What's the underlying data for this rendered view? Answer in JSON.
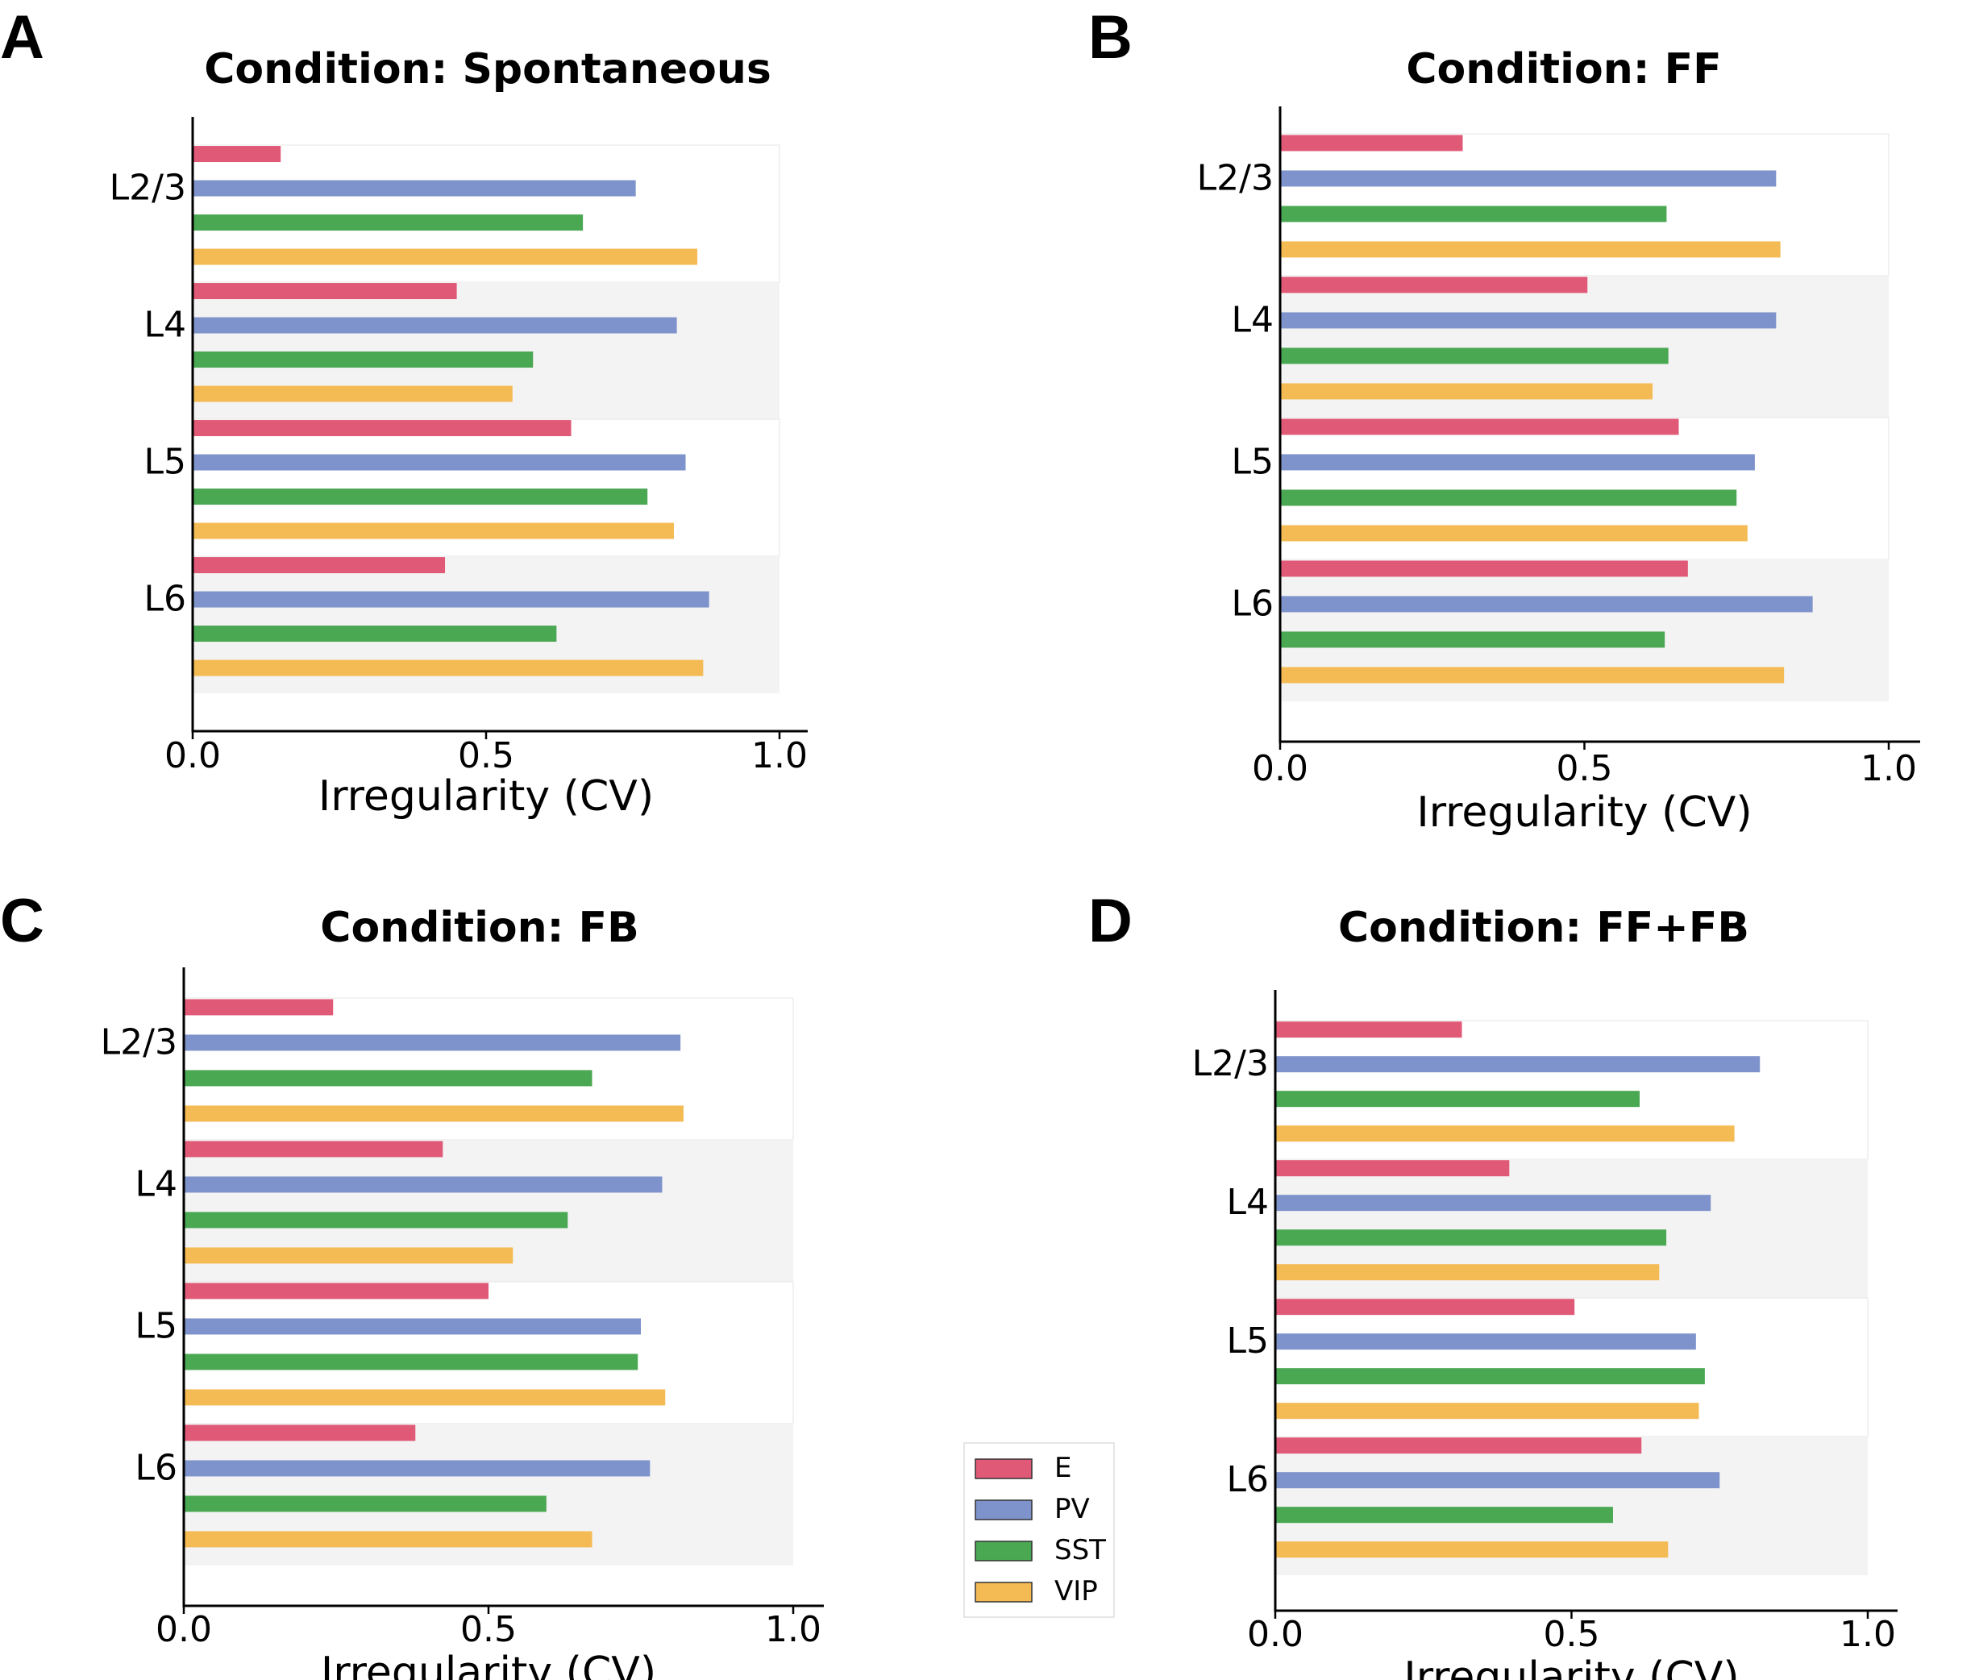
{
  "colors": {
    "E": "#e05a78",
    "PV": "#7e93cb",
    "SST": "#4aa752",
    "VIP": "#f4bb54",
    "band_shade": "#f3f3f3"
  },
  "legend": {
    "items": [
      {
        "label": "E",
        "color": "#e05a78"
      },
      {
        "label": "PV",
        "color": "#7e93cb"
      },
      {
        "label": "SST",
        "color": "#4aa752"
      },
      {
        "label": "VIP",
        "color": "#f4bb54"
      }
    ]
  },
  "chart_data": [
    {
      "panel": "A",
      "type": "bar",
      "orientation": "horizontal",
      "title": "Condition: Spontaneous",
      "xlabel": "Irregularity (CV)",
      "xlim": [
        0,
        1.0
      ],
      "xticks": [
        "0.0",
        "0.5",
        "1.0"
      ],
      "categories": [
        "L2/3",
        "L4",
        "L5",
        "L6"
      ],
      "series": [
        {
          "name": "E",
          "values": [
            0.15,
            0.45,
            0.645,
            0.43
          ]
        },
        {
          "name": "PV",
          "values": [
            0.755,
            0.825,
            0.84,
            0.88
          ]
        },
        {
          "name": "SST",
          "values": [
            0.665,
            0.58,
            0.775,
            0.62
          ]
        },
        {
          "name": "VIP",
          "values": [
            0.86,
            0.545,
            0.82,
            0.87
          ]
        }
      ]
    },
    {
      "panel": "B",
      "type": "bar",
      "orientation": "horizontal",
      "title": "Condition: FF",
      "xlabel": "Irregularity (CV)",
      "xlim": [
        0,
        1.0
      ],
      "xticks": [
        "0.0",
        "0.5",
        "1.0"
      ],
      "categories": [
        "L2/3",
        "L4",
        "L5",
        "L6"
      ],
      "series": [
        {
          "name": "E",
          "values": [
            0.3,
            0.505,
            0.655,
            0.67
          ]
        },
        {
          "name": "PV",
          "values": [
            0.815,
            0.815,
            0.78,
            0.875
          ]
        },
        {
          "name": "SST",
          "values": [
            0.635,
            0.638,
            0.75,
            0.632
          ]
        },
        {
          "name": "VIP",
          "values": [
            0.822,
            0.612,
            0.768,
            0.828
          ]
        }
      ]
    },
    {
      "panel": "C",
      "type": "bar",
      "orientation": "horizontal",
      "title": "Condition: FB",
      "xlabel": "Irregularity (CV)",
      "xlim": [
        0,
        1.0
      ],
      "xticks": [
        "0.0",
        "0.5",
        "1.0"
      ],
      "categories": [
        "L2/3",
        "L4",
        "L5",
        "L6"
      ],
      "series": [
        {
          "name": "E",
          "values": [
            0.245,
            0.425,
            0.5,
            0.38
          ]
        },
        {
          "name": "PV",
          "values": [
            0.815,
            0.785,
            0.75,
            0.765
          ]
        },
        {
          "name": "SST",
          "values": [
            0.67,
            0.63,
            0.745,
            0.595
          ]
        },
        {
          "name": "VIP",
          "values": [
            0.82,
            0.54,
            0.79,
            0.67
          ]
        }
      ]
    },
    {
      "panel": "D",
      "type": "bar",
      "orientation": "horizontal",
      "title": "Condition: FF+FB",
      "xlabel": "Irregularity (CV)",
      "xlim": [
        0,
        1.0
      ],
      "xticks": [
        "0.0",
        "0.5",
        "1.0"
      ],
      "categories": [
        "L2/3",
        "L4",
        "L5",
        "L6"
      ],
      "series": [
        {
          "name": "E",
          "values": [
            0.315,
            0.395,
            0.505,
            0.618
          ]
        },
        {
          "name": "PV",
          "values": [
            0.818,
            0.735,
            0.71,
            0.75
          ]
        },
        {
          "name": "SST",
          "values": [
            0.615,
            0.66,
            0.725,
            0.57
          ]
        },
        {
          "name": "VIP",
          "values": [
            0.775,
            0.648,
            0.715,
            0.663
          ]
        }
      ]
    }
  ]
}
